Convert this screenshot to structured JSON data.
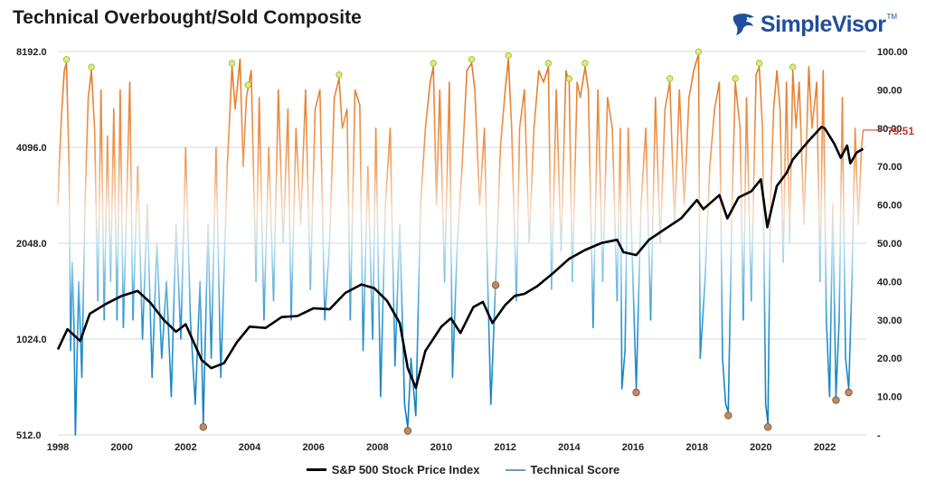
{
  "title": "Technical Overbought/Sold Composite",
  "brand": {
    "name": "SimpleVisor",
    "tm": "TM"
  },
  "legend": {
    "price_label": "S&P 500 Stock Price Index",
    "score_label": "Technical Score"
  },
  "colors": {
    "price": "#000000",
    "overbought": "#e07a2e",
    "oversold": "#1f8ac4",
    "mid_low": "#bde0f2",
    "mid_high": "#f7d8c0",
    "overbought_marker": "#d9ef6a",
    "oversold_marker": "#c28a5e",
    "latest_value": "#c0392b"
  },
  "chart_data": {
    "type": "line",
    "x_ticks": [
      "1998",
      "2000",
      "2002",
      "2004",
      "2006",
      "2008",
      "2010",
      "2012",
      "2014",
      "2016",
      "2018",
      "2020",
      "2022"
    ],
    "left_axis": {
      "scale": "log2",
      "ticks": [
        "512.0",
        "1024.0",
        "2048.0",
        "4096.0",
        "8192.0"
      ],
      "range": [
        512,
        8192
      ]
    },
    "right_axis": {
      "ticks": [
        "-",
        "10.00",
        "20.00",
        "30.00",
        "40.00",
        "50.00",
        "60.00",
        "70.00",
        "80.00",
        "90.00",
        "100.00"
      ],
      "range": [
        0,
        100
      ]
    },
    "x_range": [
      1998,
      2023.3
    ],
    "grid": "horizontal",
    "series": [
      {
        "name": "S&P 500 Stock Price Index",
        "axis": "left",
        "points": [
          [
            1998.0,
            950
          ],
          [
            1998.3,
            1100
          ],
          [
            1998.7,
            1010
          ],
          [
            1999.0,
            1230
          ],
          [
            1999.5,
            1320
          ],
          [
            2000.0,
            1400
          ],
          [
            2000.5,
            1450
          ],
          [
            2000.9,
            1330
          ],
          [
            2001.3,
            1180
          ],
          [
            2001.7,
            1080
          ],
          [
            2002.0,
            1140
          ],
          [
            2002.5,
            880
          ],
          [
            2002.8,
            830
          ],
          [
            2003.2,
            860
          ],
          [
            2003.6,
            1000
          ],
          [
            2004.0,
            1120
          ],
          [
            2004.5,
            1110
          ],
          [
            2005.0,
            1200
          ],
          [
            2005.5,
            1210
          ],
          [
            2006.0,
            1280
          ],
          [
            2006.5,
            1270
          ],
          [
            2007.0,
            1430
          ],
          [
            2007.5,
            1520
          ],
          [
            2007.9,
            1480
          ],
          [
            2008.3,
            1350
          ],
          [
            2008.7,
            1150
          ],
          [
            2008.95,
            830
          ],
          [
            2009.2,
            720
          ],
          [
            2009.5,
            940
          ],
          [
            2010.0,
            1120
          ],
          [
            2010.3,
            1190
          ],
          [
            2010.6,
            1070
          ],
          [
            2011.0,
            1290
          ],
          [
            2011.3,
            1340
          ],
          [
            2011.6,
            1150
          ],
          [
            2012.0,
            1310
          ],
          [
            2012.3,
            1400
          ],
          [
            2012.6,
            1420
          ],
          [
            2013.0,
            1500
          ],
          [
            2013.5,
            1650
          ],
          [
            2014.0,
            1830
          ],
          [
            2014.5,
            1950
          ],
          [
            2015.0,
            2050
          ],
          [
            2015.5,
            2100
          ],
          [
            2015.7,
            1920
          ],
          [
            2016.1,
            1880
          ],
          [
            2016.5,
            2100
          ],
          [
            2017.0,
            2270
          ],
          [
            2017.5,
            2450
          ],
          [
            2018.0,
            2800
          ],
          [
            2018.2,
            2620
          ],
          [
            2018.7,
            2900
          ],
          [
            2018.95,
            2450
          ],
          [
            2019.3,
            2850
          ],
          [
            2019.7,
            2980
          ],
          [
            2020.0,
            3250
          ],
          [
            2020.2,
            2300
          ],
          [
            2020.5,
            3100
          ],
          [
            2020.8,
            3400
          ],
          [
            2021.0,
            3750
          ],
          [
            2021.5,
            4300
          ],
          [
            2021.9,
            4750
          ],
          [
            2022.0,
            4700
          ],
          [
            2022.3,
            4200
          ],
          [
            2022.5,
            3800
          ],
          [
            2022.7,
            4150
          ],
          [
            2022.8,
            3650
          ],
          [
            2023.0,
            3950
          ],
          [
            2023.2,
            4050
          ]
        ]
      },
      {
        "name": "Technical Score",
        "axis": "right",
        "points": [
          [
            1998.0,
            60
          ],
          [
            1998.05,
            72
          ],
          [
            1998.12,
            84
          ],
          [
            1998.2,
            95
          ],
          [
            1998.27,
            97
          ],
          [
            1998.35,
            70
          ],
          [
            1998.4,
            22
          ],
          [
            1998.45,
            45
          ],
          [
            1998.5,
            30
          ],
          [
            1998.55,
            0
          ],
          [
            1998.65,
            40
          ],
          [
            1998.75,
            15
          ],
          [
            1998.85,
            60
          ],
          [
            1998.95,
            88
          ],
          [
            1999.05,
            95
          ],
          [
            1999.15,
            80
          ],
          [
            1999.25,
            35
          ],
          [
            1999.35,
            90
          ],
          [
            1999.45,
            30
          ],
          [
            1999.55,
            78
          ],
          [
            1999.65,
            40
          ],
          [
            1999.75,
            85
          ],
          [
            1999.85,
            30
          ],
          [
            1999.95,
            90
          ],
          [
            2000.05,
            28
          ],
          [
            2000.15,
            60
          ],
          [
            2000.25,
            92
          ],
          [
            2000.35,
            30
          ],
          [
            2000.5,
            70
          ],
          [
            2000.65,
            25
          ],
          [
            2000.8,
            60
          ],
          [
            2000.95,
            15
          ],
          [
            2001.1,
            50
          ],
          [
            2001.25,
            20
          ],
          [
            2001.4,
            40
          ],
          [
            2001.55,
            10
          ],
          [
            2001.7,
            55
          ],
          [
            2001.85,
            25
          ],
          [
            2002.0,
            75
          ],
          [
            2002.15,
            30
          ],
          [
            2002.3,
            8
          ],
          [
            2002.45,
            40
          ],
          [
            2002.55,
            3
          ],
          [
            2002.7,
            55
          ],
          [
            2002.8,
            20
          ],
          [
            2002.95,
            75
          ],
          [
            2003.1,
            15
          ],
          [
            2003.3,
            70
          ],
          [
            2003.45,
            96
          ],
          [
            2003.55,
            85
          ],
          [
            2003.7,
            98
          ],
          [
            2003.8,
            70
          ],
          [
            2003.9,
            88
          ],
          [
            2004.05,
            95
          ],
          [
            2004.2,
            40
          ],
          [
            2004.3,
            88
          ],
          [
            2004.45,
            30
          ],
          [
            2004.6,
            75
          ],
          [
            2004.75,
            35
          ],
          [
            2004.9,
            90
          ],
          [
            2005.05,
            50
          ],
          [
            2005.2,
            85
          ],
          [
            2005.3,
            30
          ],
          [
            2005.45,
            80
          ],
          [
            2005.6,
            55
          ],
          [
            2005.75,
            90
          ],
          [
            2005.9,
            38
          ],
          [
            2006.05,
            85
          ],
          [
            2006.2,
            90
          ],
          [
            2006.35,
            30
          ],
          [
            2006.5,
            50
          ],
          [
            2006.65,
            88
          ],
          [
            2006.8,
            93
          ],
          [
            2006.9,
            80
          ],
          [
            2007.05,
            85
          ],
          [
            2007.15,
            30
          ],
          [
            2007.3,
            90
          ],
          [
            2007.45,
            86
          ],
          [
            2007.55,
            22
          ],
          [
            2007.7,
            70
          ],
          [
            2007.85,
            25
          ],
          [
            2007.95,
            80
          ],
          [
            2008.1,
            10
          ],
          [
            2008.25,
            60
          ],
          [
            2008.4,
            80
          ],
          [
            2008.55,
            18
          ],
          [
            2008.7,
            55
          ],
          [
            2008.85,
            8
          ],
          [
            2008.95,
            2
          ],
          [
            2009.05,
            20
          ],
          [
            2009.2,
            5
          ],
          [
            2009.35,
            60
          ],
          [
            2009.5,
            80
          ],
          [
            2009.65,
            92
          ],
          [
            2009.75,
            96
          ],
          [
            2009.85,
            60
          ],
          [
            2009.95,
            90
          ],
          [
            2010.1,
            40
          ],
          [
            2010.25,
            92
          ],
          [
            2010.35,
            15
          ],
          [
            2010.5,
            50
          ],
          [
            2010.65,
            70
          ],
          [
            2010.8,
            95
          ],
          [
            2010.95,
            97
          ],
          [
            2011.05,
            90
          ],
          [
            2011.2,
            60
          ],
          [
            2011.35,
            80
          ],
          [
            2011.45,
            40
          ],
          [
            2011.55,
            8
          ],
          [
            2011.7,
            40
          ],
          [
            2011.85,
            75
          ],
          [
            2012.0,
            90
          ],
          [
            2012.1,
            98
          ],
          [
            2012.2,
            80
          ],
          [
            2012.35,
            35
          ],
          [
            2012.45,
            80
          ],
          [
            2012.6,
            90
          ],
          [
            2012.75,
            50
          ],
          [
            2012.9,
            80
          ],
          [
            2013.05,
            95
          ],
          [
            2013.2,
            92
          ],
          [
            2013.35,
            96
          ],
          [
            2013.45,
            38
          ],
          [
            2013.6,
            90
          ],
          [
            2013.75,
            48
          ],
          [
            2013.9,
            95
          ],
          [
            2014.0,
            92
          ],
          [
            2014.1,
            40
          ],
          [
            2014.25,
            92
          ],
          [
            2014.35,
            88
          ],
          [
            2014.5,
            96
          ],
          [
            2014.6,
            90
          ],
          [
            2014.75,
            28
          ],
          [
            2014.9,
            90
          ],
          [
            2015.05,
            40
          ],
          [
            2015.2,
            88
          ],
          [
            2015.35,
            80
          ],
          [
            2015.5,
            35
          ],
          [
            2015.6,
            80
          ],
          [
            2015.65,
            12
          ],
          [
            2015.75,
            22
          ],
          [
            2015.85,
            80
          ],
          [
            2016.0,
            40
          ],
          [
            2016.1,
            12
          ],
          [
            2016.25,
            60
          ],
          [
            2016.4,
            80
          ],
          [
            2016.55,
            30
          ],
          [
            2016.7,
            88
          ],
          [
            2016.85,
            50
          ],
          [
            2017.0,
            85
          ],
          [
            2017.15,
            92
          ],
          [
            2017.3,
            55
          ],
          [
            2017.45,
            90
          ],
          [
            2017.6,
            60
          ],
          [
            2017.75,
            88
          ],
          [
            2017.9,
            95
          ],
          [
            2018.0,
            98
          ],
          [
            2018.05,
            99
          ],
          [
            2018.1,
            20
          ],
          [
            2018.25,
            40
          ],
          [
            2018.4,
            70
          ],
          [
            2018.55,
            85
          ],
          [
            2018.7,
            92
          ],
          [
            2018.8,
            20
          ],
          [
            2018.9,
            8
          ],
          [
            2018.98,
            6
          ],
          [
            2019.1,
            60
          ],
          [
            2019.2,
            92
          ],
          [
            2019.35,
            80
          ],
          [
            2019.45,
            30
          ],
          [
            2019.55,
            88
          ],
          [
            2019.7,
            35
          ],
          [
            2019.85,
            94
          ],
          [
            2019.95,
            96
          ],
          [
            2020.05,
            80
          ],
          [
            2020.15,
            8
          ],
          [
            2020.22,
            3
          ],
          [
            2020.3,
            60
          ],
          [
            2020.4,
            85
          ],
          [
            2020.5,
            95
          ],
          [
            2020.6,
            85
          ],
          [
            2020.7,
            45
          ],
          [
            2020.8,
            92
          ],
          [
            2020.9,
            50
          ],
          [
            2021.0,
            95
          ],
          [
            2021.1,
            80
          ],
          [
            2021.2,
            92
          ],
          [
            2021.35,
            55
          ],
          [
            2021.5,
            96
          ],
          [
            2021.6,
            80
          ],
          [
            2021.75,
            92
          ],
          [
            2021.85,
            40
          ],
          [
            2021.95,
            95
          ],
          [
            2022.05,
            30
          ],
          [
            2022.15,
            10
          ],
          [
            2022.25,
            60
          ],
          [
            2022.35,
            10
          ],
          [
            2022.45,
            30
          ],
          [
            2022.55,
            88
          ],
          [
            2022.65,
            20
          ],
          [
            2022.75,
            12
          ],
          [
            2022.85,
            40
          ],
          [
            2022.95,
            80
          ],
          [
            2023.05,
            55
          ],
          [
            2023.15,
            75
          ],
          [
            2023.2,
            79.51
          ]
        ]
      }
    ],
    "overbought_markers": [
      1998.27,
      1999.05,
      2003.45,
      2003.95,
      2006.8,
      2009.75,
      2010.95,
      2012.1,
      2013.35,
      2014.0,
      2014.5,
      2017.15,
      2018.05,
      2019.2,
      2019.95,
      2021.0
    ],
    "oversold_markers": [
      2002.55,
      2008.95,
      2011.7,
      2016.1,
      2018.98,
      2020.22,
      2022.35,
      2022.75
    ],
    "latest_value": "79.51"
  }
}
